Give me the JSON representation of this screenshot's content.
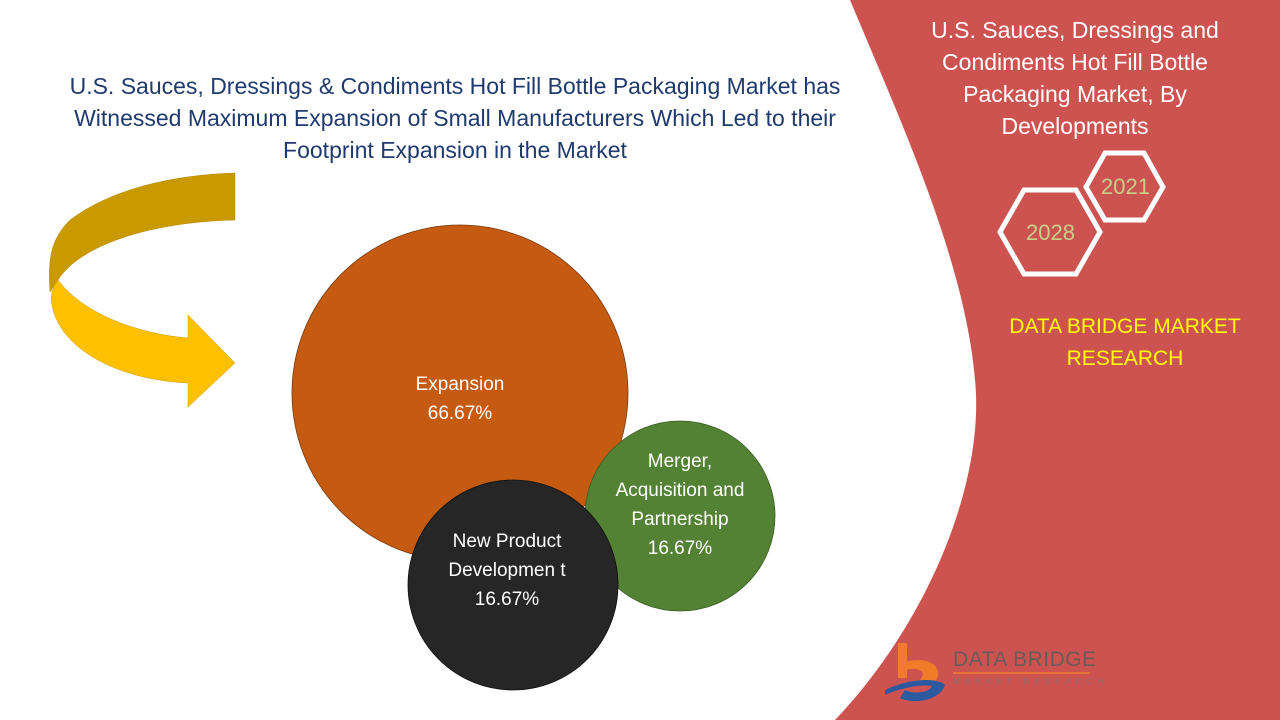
{
  "headline": "U.S. Sauces, Dressings & Condiments Hot Fill Bottle Packaging Market has Witnessed Maximum Expansion of Small Manufacturers Which Led to their Footprint Expansion in the Market",
  "panel": {
    "title": "U.S. Sauces, Dressings and Condiments Hot Fill Bottle Packaging Market, By Developments",
    "years": [
      "2021",
      "2028"
    ],
    "brand": "DATA BRIDGE MARKET RESEARCH",
    "logo_text": "DATA BRIDGE",
    "logo_sub": "MARKET RESEARCH"
  },
  "bubbles": [
    {
      "name": "Expansion",
      "value": "66.67%",
      "share": 66.67,
      "color": "#c55a11"
    },
    {
      "name": "Merger, Acquisition and Partnership",
      "value": "16.67%",
      "share": 16.67,
      "color": "#548235"
    },
    {
      "name": "New Product Developmen t",
      "value": "16.67%",
      "share": 16.67,
      "color": "#262626"
    }
  ],
  "colors": {
    "panel": "#cd5350",
    "headline": "#1f3a6e",
    "arrow_dark": "#c99a00",
    "arrow_light": "#ffc000"
  }
}
